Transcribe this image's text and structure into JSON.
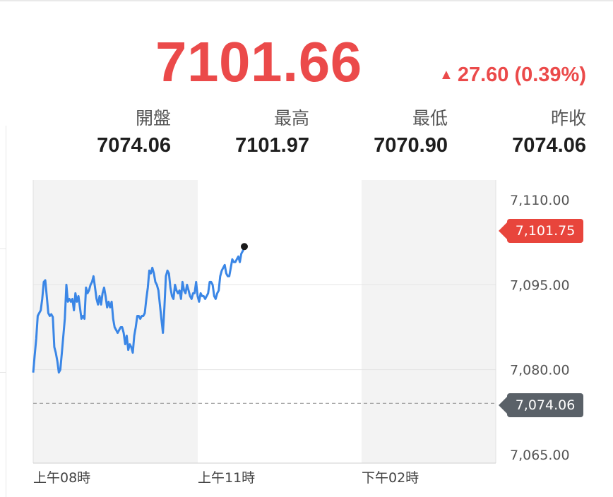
{
  "quote": {
    "price": "7101.66",
    "change_arrow": "▲",
    "change": "27.60 (0.39%)",
    "color_up": "#eb4a4a"
  },
  "stats": [
    {
      "label": "開盤",
      "value": "7074.06"
    },
    {
      "label": "最高",
      "value": "7101.97"
    },
    {
      "label": "最低",
      "value": "7070.90"
    },
    {
      "label": "昨收",
      "value": "7074.06"
    }
  ],
  "chart_data": {
    "type": "line",
    "x_tick_labels": [
      "上午08時",
      "上午11時",
      "下午02時"
    ],
    "y_tick_labels": [
      "7,110.00",
      "7,095.00",
      "7,080.00",
      "7,065.00"
    ],
    "y_ticks": [
      7110,
      7095,
      7080,
      7065
    ],
    "ylim": [
      7063.5,
      7113.5
    ],
    "current_value_label": "7,101.75",
    "current_value": 7101.75,
    "previous_close_label": "7,074.06",
    "previous_close": 7074.06,
    "series_color": "#3a86e6",
    "y": [
      7079.5,
      7082.5,
      7085.5,
      7089.5,
      7090.0,
      7090.5,
      7092.5,
      7095.5,
      7095.8,
      7093.0,
      7090.0,
      7089.5,
      7089.8,
      7089.3,
      7084.0,
      7083.0,
      7081.5,
      7079.5,
      7080.0,
      7083.0,
      7086.0,
      7089.0,
      7095.0,
      7092.0,
      7092.5,
      7092.0,
      7092.5,
      7090.5,
      7093.5,
      7092.0,
      7093.0,
      7091.0,
      7089.0,
      7089.5,
      7089.0,
      7094.5,
      7093.5,
      7094.0,
      7095.0,
      7095.5,
      7096.5,
      7094.5,
      7092.5,
      7091.5,
      7093.0,
      7091.5,
      7093.5,
      7094.5,
      7093.0,
      7091.0,
      7092.0,
      7091.0,
      7092.0,
      7089.0,
      7087.5,
      7087.0,
      7086.5,
      7087.0,
      7087.5,
      7087.5,
      7086.5,
      7084.5,
      7086.0,
      7083.5,
      7084.5,
      7084.0,
      7083.0,
      7086.0,
      7087.5,
      7089.5,
      7089.5,
      7089.0,
      7089.5,
      7089.5,
      7090.0,
      7092.5,
      7094.5,
      7097.5,
      7097.0,
      7098.0,
      7097.0,
      7095.5,
      7095.0,
      7094.0,
      7091.5,
      7089.0,
      7086.5,
      7091.0,
      7096.5,
      7097.5,
      7097.0,
      7094.5,
      7093.0,
      7092.5,
      7095.0,
      7094.0,
      7093.5,
      7094.0,
      7092.5,
      7095.5,
      7094.0,
      7093.5,
      7095.0,
      7094.0,
      7093.0,
      7092.5,
      7093.5,
      7093.5,
      7095.5,
      7093.0,
      7092.0,
      7093.5,
      7093.0,
      7093.0,
      7092.5,
      7093.0,
      7093.5,
      7095.5,
      7095.5,
      7095.0,
      7093.0,
      7092.5,
      7093.5,
      7094.0,
      7096.5,
      7097.5,
      7098.0,
      7098.5,
      7097.0,
      7096.5,
      7096.5,
      7098.0,
      7099.5,
      7099.0,
      7099.0,
      7099.5,
      7100.0,
      7099.0,
      7100.5,
      7101.0,
      7101.75
    ]
  }
}
